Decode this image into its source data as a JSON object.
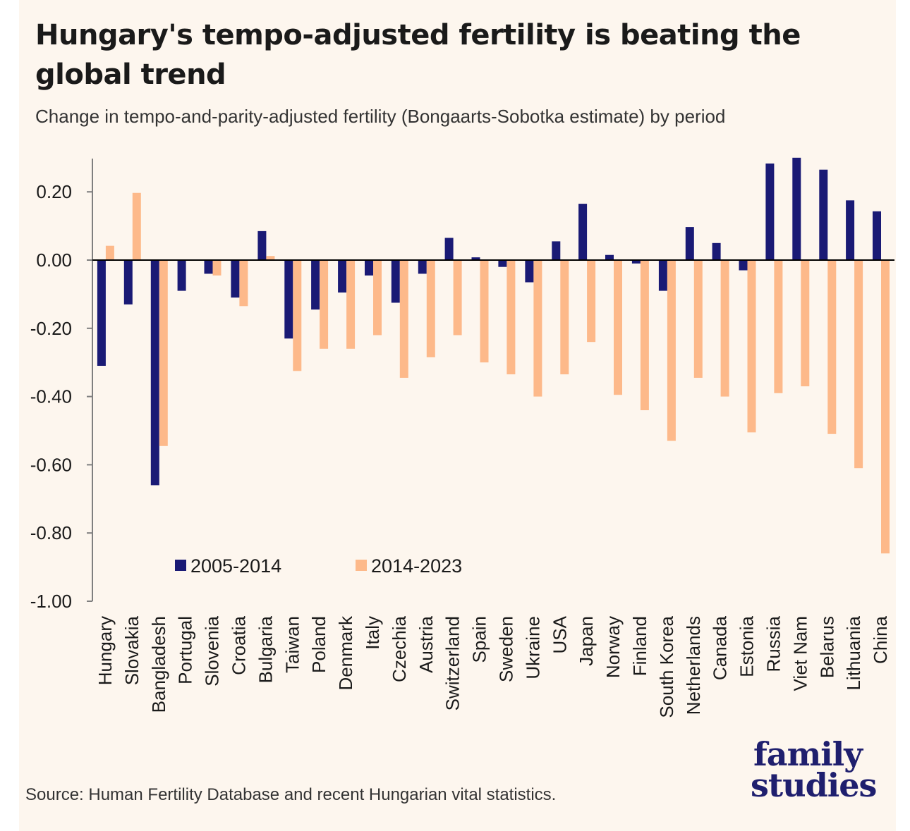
{
  "title": "Hungary's tempo-adjusted fertility is beating the global trend",
  "subtitle": "Change in tempo-and-parity-adjusted fertility (Bongaarts-Sobotka estimate) by period",
  "source": "Source: Human Fertility Database and recent Hungarian vital statistics.",
  "logo": {
    "line1": "family",
    "line2": "studies"
  },
  "colors": {
    "series1": "#1A1A75",
    "series2": "#FDB98A",
    "axis": "#7f7f7f",
    "text": "#1a1a1a",
    "background": "#FDF6EE"
  },
  "chart_data": {
    "type": "bar",
    "title": "Hungary's tempo-adjusted fertility is beating the global trend",
    "xlabel": "",
    "ylabel": "",
    "ylim": [
      -1.0,
      0.3
    ],
    "yticks": [
      0.2,
      0.0,
      -0.2,
      -0.4,
      -0.6,
      -0.8,
      -1.0
    ],
    "ytick_labels": [
      "0.20",
      "0.00",
      "-0.20",
      "-0.40",
      "-0.60",
      "-0.80",
      "-1.00"
    ],
    "legend_position": "lower-left",
    "categories": [
      "Hungary",
      "Slovakia",
      "Bangladesh",
      "Portugal",
      "Slovenia",
      "Croatia",
      "Bulgaria",
      "Taiwan",
      "Poland",
      "Denmark",
      "Italy",
      "Czechia",
      "Austria",
      "Switzerland",
      "Spain",
      "Sweden",
      "Ukraine",
      "USA",
      "Japan",
      "Norway",
      "Finland",
      "South Korea",
      "Netherlands",
      "Canada",
      "Estonia",
      "Russia",
      "Viet Nam",
      "Belarus",
      "Lithuania",
      "China"
    ],
    "series": [
      {
        "name": "2005-2014",
        "values": [
          -0.31,
          -0.13,
          -0.66,
          -0.09,
          -0.04,
          -0.11,
          0.085,
          -0.23,
          -0.145,
          -0.095,
          -0.045,
          -0.125,
          -0.04,
          0.065,
          0.008,
          -0.02,
          -0.065,
          0.055,
          0.165,
          0.015,
          -0.01,
          -0.09,
          0.097,
          0.05,
          -0.03,
          0.283,
          0.3,
          0.265,
          0.175,
          0.143
        ]
      },
      {
        "name": "2014-2023",
        "values": [
          0.042,
          0.197,
          -0.545,
          null,
          -0.045,
          -0.135,
          0.012,
          -0.325,
          -0.26,
          -0.26,
          -0.22,
          -0.345,
          -0.285,
          -0.22,
          -0.3,
          -0.335,
          -0.4,
          -0.335,
          -0.24,
          -0.395,
          -0.44,
          -0.53,
          -0.345,
          -0.4,
          -0.505,
          -0.39,
          -0.37,
          -0.51,
          -0.61,
          -0.86
        ]
      }
    ]
  }
}
